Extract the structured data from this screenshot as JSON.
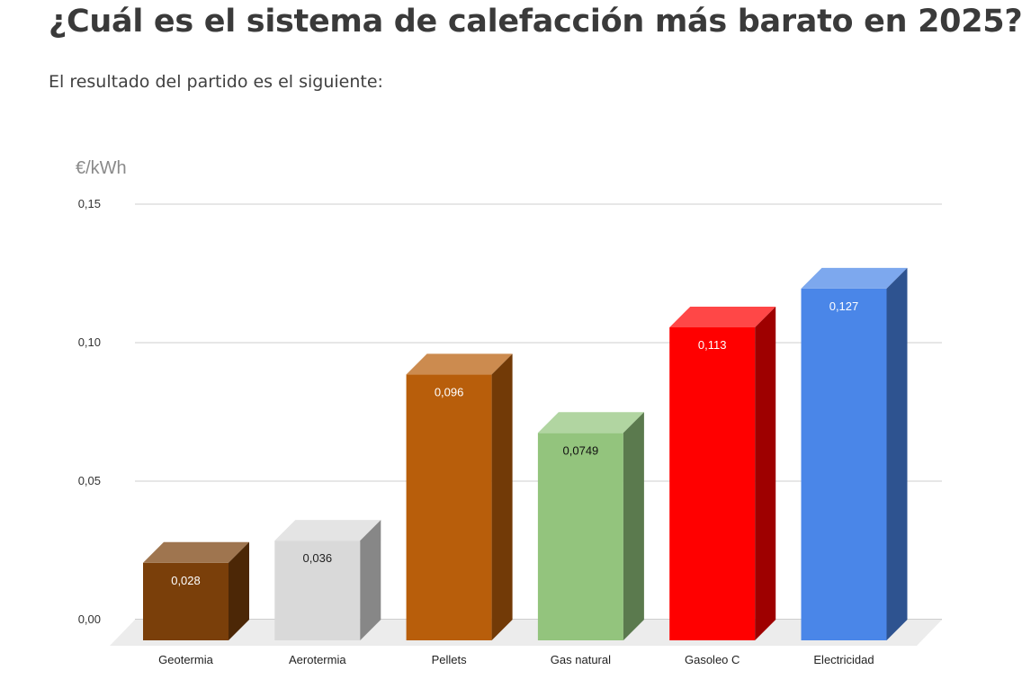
{
  "page": {
    "title": "¿Cuál es el sistema de calefacción más barato en 2025?",
    "intro": "El resultado del partido es el siguiente:"
  },
  "chart_data": {
    "type": "bar",
    "style": "3d",
    "title": "",
    "ylabel": "€/kWh",
    "xlabel": "",
    "ylim": [
      0,
      0.15
    ],
    "yticks": [
      0,
      0.05,
      0.1,
      0.15
    ],
    "ytick_labels": [
      "0,00",
      "0,05",
      "0,10",
      "0,15"
    ],
    "grid": true,
    "categories": [
      "Geotermia",
      "Aerotermia",
      "Pellets",
      "Gas natural",
      "Gasoleo C",
      "Electricidad"
    ],
    "values": [
      0.028,
      0.036,
      0.096,
      0.0749,
      0.113,
      0.127
    ],
    "value_labels": [
      "0,028",
      "0,036",
      "0,096",
      "0,0749",
      "0,113",
      "0,127"
    ],
    "colors": [
      "#7a3f0a",
      "#d9d9d9",
      "#b85e0b",
      "#93c47d",
      "#ff0000",
      "#4a86e8"
    ],
    "label_colors": [
      "#ffffff",
      "#222222",
      "#ffffff",
      "#111111",
      "#ffffff",
      "#ffffff"
    ]
  }
}
